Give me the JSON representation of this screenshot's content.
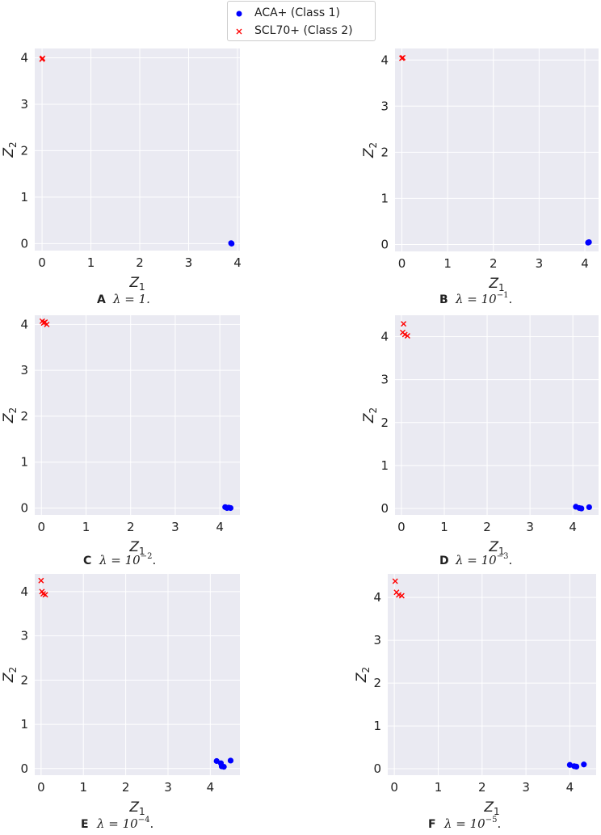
{
  "legend": {
    "items": [
      {
        "label": "ACA+ (Class 1)",
        "color": "#0000ff",
        "marker": "circle"
      },
      {
        "label": "SCL70+ (Class 2)",
        "color": "#ff0000",
        "marker": "x"
      }
    ]
  },
  "style": {
    "plot_bg": "#eaeaf2",
    "grid": "#ffffff",
    "text": "#222222"
  },
  "chart_data": [
    {
      "type": "scatter",
      "panel": "A",
      "caption": "λ = 1.",
      "xlabel": "Z1",
      "ylabel": "Z2",
      "xlim": [
        -0.15,
        4.05
      ],
      "ylim": [
        -0.15,
        4.2
      ],
      "xticks": [
        0,
        1,
        2,
        3,
        4
      ],
      "yticks": [
        0,
        1,
        2,
        3,
        4
      ],
      "series": [
        {
          "name": "ACA+ (Class 1)",
          "points": [
            [
              3.87,
              0.01
            ],
            [
              3.88,
              0.0
            ]
          ]
        },
        {
          "name": "SCL70+ (Class 2)",
          "points": [
            [
              0.0,
              3.97
            ],
            [
              0.01,
              3.99
            ]
          ]
        }
      ]
    },
    {
      "type": "scatter",
      "panel": "B",
      "caption": "λ = 10",
      "caption_sup": "−1",
      "caption_end": ".",
      "xlabel": "Z1",
      "ylabel": "Z2",
      "xlim": [
        -0.15,
        4.3
      ],
      "ylim": [
        -0.15,
        4.25
      ],
      "xticks": [
        0,
        1,
        2,
        3,
        4
      ],
      "yticks": [
        0,
        1,
        2,
        3,
        4
      ],
      "series": [
        {
          "name": "ACA+ (Class 1)",
          "points": [
            [
              4.07,
              0.04
            ],
            [
              4.09,
              0.05
            ]
          ]
        },
        {
          "name": "SCL70+ (Class 2)",
          "points": [
            [
              0.0,
              4.04
            ],
            [
              0.02,
              4.05
            ]
          ]
        }
      ]
    },
    {
      "type": "scatter",
      "panel": "C",
      "caption": "λ = 10",
      "caption_sup": "−2",
      "caption_end": ".",
      "xlabel": "Z1",
      "ylabel": "Z2",
      "xlim": [
        -0.15,
        4.45
      ],
      "ylim": [
        -0.15,
        4.2
      ],
      "xticks": [
        0,
        1,
        2,
        3,
        4
      ],
      "yticks": [
        0,
        1,
        2,
        3,
        4
      ],
      "series": [
        {
          "name": "ACA+ (Class 1)",
          "points": [
            [
              4.12,
              0.02
            ],
            [
              4.16,
              0.0
            ],
            [
              4.2,
              0.01
            ],
            [
              4.24,
              0.0
            ]
          ]
        },
        {
          "name": "SCL70+ (Class 2)",
          "points": [
            [
              0.02,
              4.07
            ],
            [
              0.05,
              4.03
            ],
            [
              0.08,
              4.05
            ],
            [
              0.12,
              4.0
            ]
          ]
        }
      ]
    },
    {
      "type": "scatter",
      "panel": "D",
      "caption": "λ = 10",
      "caption_sup": "−3",
      "caption_end": ".",
      "xlabel": "Z1",
      "ylabel": "Z2",
      "xlim": [
        -0.15,
        4.6
      ],
      "ylim": [
        -0.15,
        4.5
      ],
      "xticks": [
        0,
        1,
        2,
        3,
        4
      ],
      "yticks": [
        0,
        1,
        2,
        3,
        4
      ],
      "series": [
        {
          "name": "ACA+ (Class 1)",
          "points": [
            [
              4.07,
              0.04
            ],
            [
              4.15,
              0.01
            ],
            [
              4.2,
              0.0
            ],
            [
              4.38,
              0.03
            ]
          ]
        },
        {
          "name": "SCL70+ (Class 2)",
          "points": [
            [
              0.05,
              4.3
            ],
            [
              0.03,
              4.1
            ],
            [
              0.08,
              4.05
            ],
            [
              0.14,
              4.02
            ]
          ]
        }
      ]
    },
    {
      "type": "scatter",
      "panel": "E",
      "caption": "λ = 10",
      "caption_sup": "−4",
      "caption_end": ".",
      "xlabel": "Z1",
      "ylabel": "Z2",
      "xlim": [
        -0.15,
        4.7
      ],
      "ylim": [
        -0.15,
        4.4
      ],
      "xticks": [
        0,
        1,
        2,
        3,
        4
      ],
      "yticks": [
        0,
        1,
        2,
        3,
        4
      ],
      "series": [
        {
          "name": "ACA+ (Class 1)",
          "points": [
            [
              4.15,
              0.17
            ],
            [
              4.25,
              0.12
            ],
            [
              4.27,
              0.05
            ],
            [
              4.32,
              0.04
            ],
            [
              4.48,
              0.18
            ]
          ]
        },
        {
          "name": "SCL70+ (Class 2)",
          "points": [
            [
              0.0,
              4.25
            ],
            [
              0.02,
              4.0
            ],
            [
              0.05,
              3.95
            ],
            [
              0.1,
              3.93
            ]
          ]
        }
      ]
    },
    {
      "type": "scatter",
      "panel": "F",
      "caption": "λ = 10",
      "caption_sup": "−5",
      "caption_end": ".",
      "xlabel": "Z1",
      "ylabel": "Z2",
      "xlim": [
        -0.15,
        4.6
      ],
      "ylim": [
        -0.15,
        4.55
      ],
      "xticks": [
        0,
        1,
        2,
        3,
        4
      ],
      "yticks": [
        0,
        1,
        2,
        3,
        4
      ],
      "series": [
        {
          "name": "ACA+ (Class 1)",
          "points": [
            [
              4.0,
              0.09
            ],
            [
              4.1,
              0.06
            ],
            [
              4.15,
              0.05
            ],
            [
              4.32,
              0.1
            ]
          ]
        },
        {
          "name": "SCL70+ (Class 2)",
          "points": [
            [
              0.02,
              4.38
            ],
            [
              0.05,
              4.12
            ],
            [
              0.1,
              4.06
            ],
            [
              0.17,
              4.04
            ]
          ]
        }
      ]
    }
  ]
}
